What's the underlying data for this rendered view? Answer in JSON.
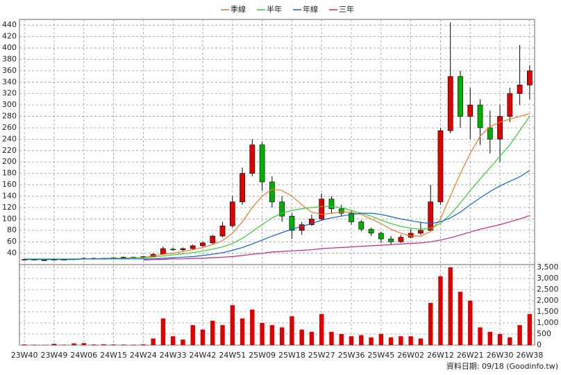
{
  "chart_data": [
    {
      "type": "candlestick",
      "up_color": "#e00000",
      "down_color": "#00b000",
      "ylim": [
        20,
        450
      ],
      "yticks": [
        40,
        60,
        80,
        100,
        120,
        140,
        160,
        180,
        200,
        220,
        240,
        260,
        280,
        300,
        320,
        340,
        360,
        380,
        400,
        420,
        440
      ],
      "grid": true,
      "legend": "top",
      "ohlc": {
        "open": [
          28,
          29,
          28,
          28,
          29,
          29,
          30,
          31,
          30,
          31,
          32,
          33,
          32,
          34,
          38,
          47,
          46,
          48,
          53,
          58,
          70,
          88,
          130,
          180,
          230,
          165,
          130,
          105,
          80,
          90,
          100,
          135,
          118,
          110,
          95,
          82,
          75,
          65,
          60,
          68,
          75,
          80,
          130,
          255,
          350,
          280,
          300,
          260,
          240,
          280,
          320,
          335
        ],
        "high": [
          30,
          30,
          29,
          30,
          30,
          31,
          32,
          32,
          32,
          33,
          34,
          34,
          35,
          40,
          52,
          50,
          50,
          55,
          60,
          72,
          95,
          140,
          190,
          240,
          235,
          175,
          140,
          110,
          95,
          108,
          145,
          140,
          125,
          115,
          98,
          85,
          78,
          70,
          72,
          82,
          95,
          160,
          260,
          445,
          360,
          330,
          310,
          290,
          300,
          330,
          405,
          370
        ],
        "low": [
          27,
          28,
          27,
          27,
          28,
          28,
          29,
          29,
          29,
          30,
          31,
          31,
          31,
          33,
          37,
          44,
          44,
          46,
          51,
          56,
          68,
          85,
          125,
          175,
          150,
          120,
          95,
          65,
          72,
          88,
          98,
          110,
          105,
          90,
          78,
          70,
          58,
          55,
          58,
          66,
          72,
          78,
          125,
          250,
          260,
          240,
          230,
          215,
          200,
          270,
          300,
          310
        ],
        "close": [
          29,
          28,
          28,
          29,
          29,
          30,
          31,
          30,
          31,
          32,
          33,
          32,
          34,
          38,
          48,
          46,
          48,
          53,
          58,
          70,
          88,
          130,
          180,
          230,
          165,
          130,
          105,
          80,
          90,
          100,
          135,
          118,
          110,
          95,
          82,
          75,
          65,
          60,
          68,
          75,
          80,
          130,
          255,
          350,
          280,
          300,
          260,
          240,
          280,
          320,
          335,
          360
        ]
      },
      "series": [
        {
          "name": "季線",
          "color": "#f07820",
          "values": [
            29,
            29,
            29,
            29,
            29,
            29,
            30,
            30,
            30,
            31,
            31,
            32,
            32,
            35,
            38,
            40,
            43,
            46,
            50,
            55,
            62,
            75,
            95,
            120,
            140,
            152,
            150,
            140,
            125,
            112,
            108,
            110,
            112,
            112,
            108,
            100,
            92,
            82,
            75,
            70,
            70,
            78,
            100,
            140,
            180,
            215,
            245,
            262,
            270,
            275,
            280,
            285
          ]
        },
        {
          "name": "半年",
          "color": "#30d030",
          "values": [
            30,
            30,
            30,
            30,
            30,
            30,
            30,
            30,
            31,
            31,
            31,
            32,
            32,
            33,
            35,
            37,
            39,
            41,
            44,
            47,
            51,
            57,
            66,
            78,
            90,
            102,
            110,
            115,
            118,
            120,
            122,
            122,
            120,
            115,
            110,
            105,
            98,
            92,
            87,
            84,
            82,
            84,
            92,
            108,
            128,
            150,
            170,
            190,
            210,
            230,
            255,
            280
          ]
        },
        {
          "name": "年線",
          "color": "#1060d0",
          "values": [
            29,
            29,
            29,
            29,
            29,
            29,
            30,
            30,
            30,
            30,
            30,
            30,
            30,
            30,
            31,
            32,
            33,
            34,
            36,
            38,
            41,
            45,
            50,
            56,
            63,
            70,
            76,
            82,
            87,
            92,
            98,
            102,
            105,
            108,
            110,
            110,
            108,
            104,
            100,
            97,
            94,
            92,
            95,
            102,
            112,
            125,
            137,
            148,
            158,
            166,
            174,
            185
          ]
        },
        {
          "name": "三年",
          "color": "#d0207a",
          "values": [
            null,
            null,
            null,
            null,
            null,
            null,
            null,
            null,
            null,
            null,
            null,
            null,
            28,
            29,
            29,
            30,
            30,
            31,
            31,
            32,
            33,
            34,
            36,
            38,
            40,
            42,
            43,
            44,
            45,
            46,
            48,
            49,
            50,
            51,
            52,
            53,
            54,
            55,
            56,
            57,
            58,
            60,
            63,
            67,
            72,
            77,
            82,
            86,
            90,
            95,
            100,
            106
          ]
        }
      ]
    },
    {
      "type": "bar",
      "color": "#e00000",
      "categories": [
        "23W40",
        null,
        null,
        "23W49",
        null,
        null,
        "24W06",
        null,
        null,
        "24W15",
        null,
        null,
        "24W24",
        null,
        null,
        "24W33",
        null,
        null,
        "24W42",
        null,
        null,
        "24W51",
        null,
        null,
        "25W09",
        null,
        null,
        "25W18",
        null,
        null,
        "25W27",
        null,
        null,
        "25W36",
        null,
        null,
        "25W45",
        null,
        null,
        "26W02",
        null,
        null,
        "26W12",
        null,
        null,
        "26W21",
        null,
        null,
        "26W30",
        null,
        null,
        "26W38"
      ],
      "values": [
        30,
        20,
        15,
        60,
        20,
        80,
        90,
        30,
        40,
        30,
        25,
        20,
        40,
        300,
        1200,
        400,
        250,
        900,
        700,
        1100,
        900,
        1800,
        1200,
        1600,
        1000,
        900,
        800,
        1300,
        700,
        600,
        1400,
        600,
        500,
        400,
        450,
        350,
        500,
        350,
        400,
        400,
        300,
        1900,
        3100,
        3500,
        2400,
        2000,
        800,
        600,
        500,
        350,
        900,
        1400
      ],
      "ylim": [
        0,
        3500
      ],
      "yticks": [
        0,
        500,
        {
          "value": 1000,
          "label": "1,000"
        },
        {
          "value": 1500,
          "label": "1,500"
        },
        {
          "value": 2000,
          "label": "2,000"
        },
        {
          "value": 2500,
          "label": "2,500"
        },
        {
          "value": 3000,
          "label": "3,000"
        },
        {
          "value": 3500,
          "label": "3,500"
        }
      ],
      "footer": "資料日期: 09/18 (Goodinfo.tw)"
    }
  ]
}
